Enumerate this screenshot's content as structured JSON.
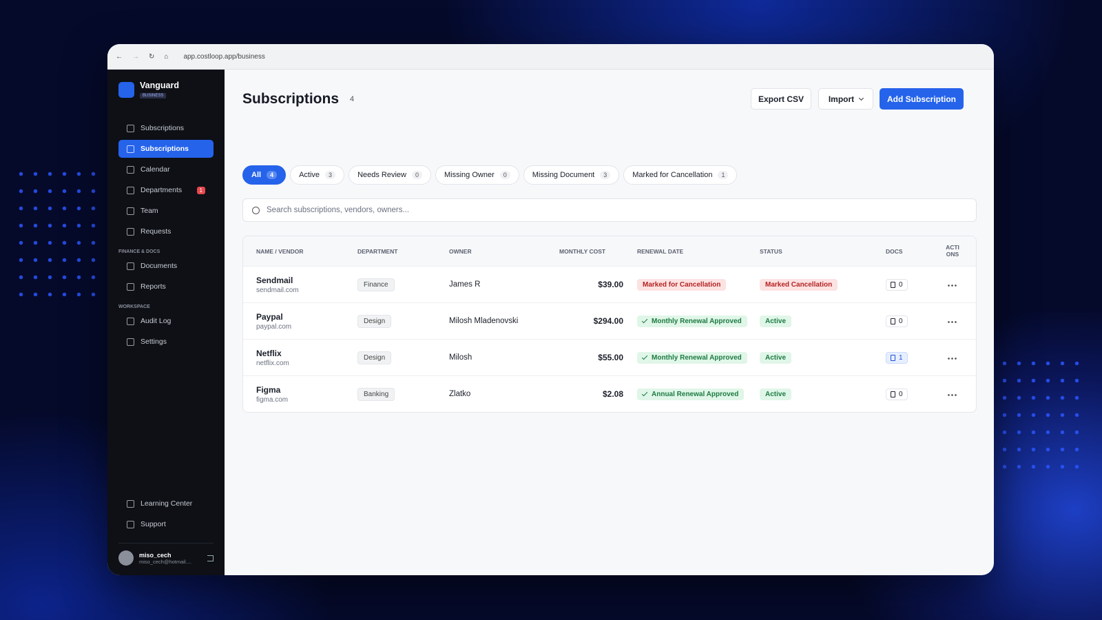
{
  "browser": {
    "url": "app.costloop.app/business"
  },
  "sidebar": {
    "brand": "Vanguard",
    "plan": "BUSINESS",
    "nav": [
      {
        "label": "Subscriptions"
      },
      {
        "label": "Subscriptions",
        "active": true
      },
      {
        "label": "Calendar"
      },
      {
        "label": "Departments",
        "badge": 1
      },
      {
        "label": "Team"
      },
      {
        "label": "Requests"
      }
    ],
    "sections": [
      {
        "title": "FINANCE & DOCS",
        "items": [
          {
            "label": "Documents"
          },
          {
            "label": "Reports"
          }
        ]
      },
      {
        "title": "WORKSPACE",
        "items": [
          {
            "label": "Audit Log"
          },
          {
            "label": "Settings"
          }
        ]
      }
    ],
    "footer_nav": [
      {
        "label": "Learning Center"
      },
      {
        "label": "Support"
      }
    ],
    "user": {
      "name": "miso_cech",
      "email": "miso_cech@hotmail...."
    }
  },
  "main": {
    "title": "Subscriptions",
    "count": 4,
    "buttons": [
      "Export CSV",
      "Import",
      "Add Subscription"
    ],
    "tabs": [
      {
        "label": "All",
        "count": 4,
        "active": true
      },
      {
        "label": "Active",
        "count": 3
      },
      {
        "label": "Needs Review",
        "count": 0
      },
      {
        "label": "Missing Owner",
        "count": 0
      },
      {
        "label": "Missing Document",
        "count": 3
      },
      {
        "label": "Marked for Cancellation",
        "count": 1
      }
    ],
    "search_placeholder": "Search subscriptions, vendors, owners...",
    "table": {
      "columns": [
        "NAME / VENDOR",
        "DEPARTMENT",
        "OWNER",
        "MONTHLY COST",
        "RENEWAL DATE",
        "STATUS",
        "DOCS",
        "ACTIONS"
      ],
      "rows": [
        {
          "name": "Sendmail",
          "domain": "sendmail.com",
          "department": "Finance",
          "owner": "James R",
          "cost": "$39.00",
          "renewal": "Marked for Cancellation",
          "renewal_tone": "red",
          "status": "Marked Cancellation",
          "status_tone": "red",
          "docs": 0
        },
        {
          "name": "Paypal",
          "domain": "paypal.com",
          "department": "Design",
          "owner": "Milosh Mladenovski",
          "cost": "$294.00",
          "renewal": "Monthly Renewal Approved",
          "renewal_tone": "green",
          "status": "Active",
          "status_tone": "green",
          "docs": 0
        },
        {
          "name": "Netflix",
          "domain": "netflix.com",
          "department": "Design",
          "owner": "Milosh",
          "cost": "$55.00",
          "renewal": "Monthly Renewal Approved",
          "renewal_tone": "green",
          "status": "Active",
          "status_tone": "green",
          "docs": 1
        },
        {
          "name": "Figma",
          "domain": "figma.com",
          "department": "Banking",
          "owner": "Zlatko",
          "cost": "$2.08",
          "renewal": "Annual Renewal Approved",
          "renewal_tone": "green",
          "status": "Active",
          "status_tone": "green",
          "docs": 0
        }
      ]
    }
  }
}
